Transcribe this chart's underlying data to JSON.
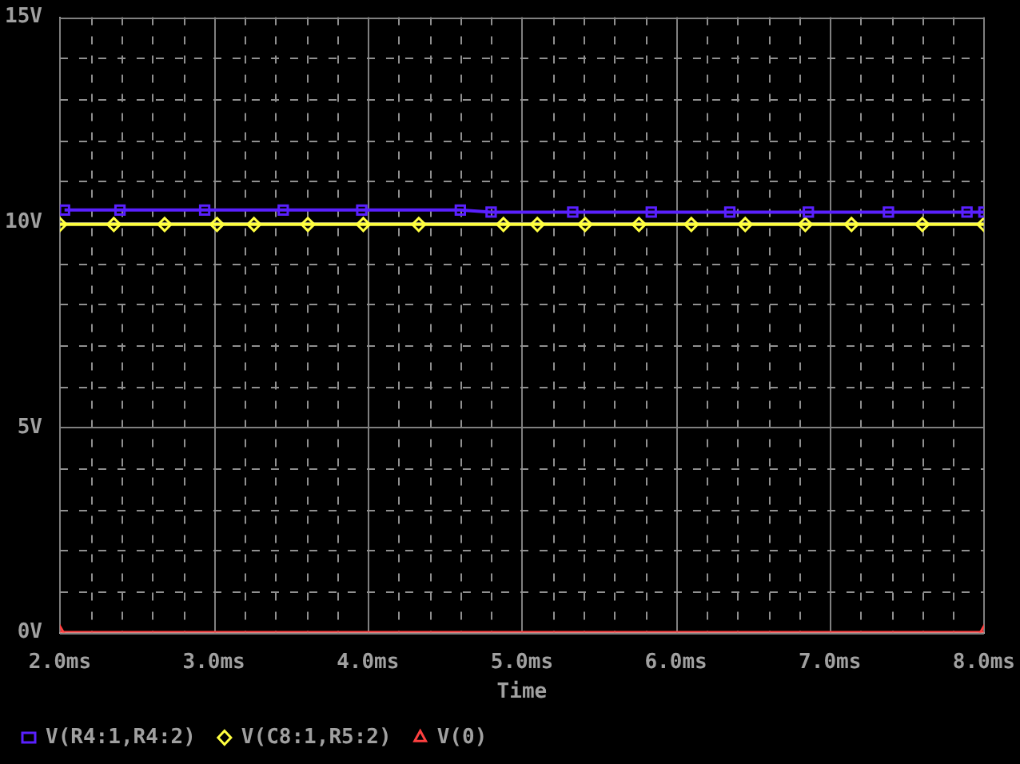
{
  "chart_data": {
    "type": "line",
    "xlabel": "Time",
    "x": [
      2.03,
      2.39,
      2.94,
      3.45,
      3.96,
      4.6,
      4.8,
      5.33,
      5.84,
      6.35,
      6.86,
      7.38,
      7.89,
      8.0
    ],
    "series": [
      {
        "name": "V(R4:1,R4:2)",
        "color": "#5a20ff",
        "marker": "square",
        "values": [
          10.3,
          10.3,
          10.3,
          10.3,
          10.3,
          10.3,
          10.25,
          10.25,
          10.25,
          10.25,
          10.25,
          10.25,
          10.25,
          10.25
        ]
      },
      {
        "name": "V(C8:1,R5:2)",
        "color": "#ffff40",
        "marker": "diamond",
        "x": [
          2.0,
          2.35,
          2.68,
          3.02,
          3.26,
          3.61,
          3.97,
          4.33,
          4.88,
          5.1,
          5.41,
          5.76,
          6.1,
          6.45,
          6.84,
          7.14,
          7.6,
          8.0
        ],
        "values": [
          9.95,
          9.95,
          9.95,
          9.95,
          9.95,
          9.95,
          9.95,
          9.95,
          9.95,
          9.95,
          9.95,
          9.95,
          9.95,
          9.95,
          9.95,
          9.95,
          9.95,
          9.95
        ]
      },
      {
        "name": "V(0)",
        "color": "#ff4040",
        "marker": "triangle",
        "x": [
          2.0,
          8.0
        ],
        "values": [
          0,
          0
        ]
      }
    ],
    "xlim": [
      2.0,
      8.0
    ],
    "xticks": [
      {
        "value": 2.0,
        "label": "2.0ms"
      },
      {
        "value": 2.2,
        "label": null
      },
      {
        "value": 2.4,
        "label": null
      },
      {
        "value": 2.6,
        "label": null
      },
      {
        "value": 2.8,
        "label": null
      },
      {
        "value": 3.0,
        "label": "3.0ms"
      },
      {
        "value": 3.2,
        "label": null
      },
      {
        "value": 3.4,
        "label": null
      },
      {
        "value": 3.6,
        "label": null
      },
      {
        "value": 3.8,
        "label": null
      },
      {
        "value": 4.0,
        "label": "4.0ms"
      },
      {
        "value": 4.2,
        "label": null
      },
      {
        "value": 4.4,
        "label": null
      },
      {
        "value": 4.6,
        "label": null
      },
      {
        "value": 4.8,
        "label": null
      },
      {
        "value": 5.0,
        "label": "5.0ms"
      },
      {
        "value": 5.2,
        "label": null
      },
      {
        "value": 5.4,
        "label": null
      },
      {
        "value": 5.6,
        "label": null
      },
      {
        "value": 5.8,
        "label": null
      },
      {
        "value": 6.0,
        "label": "6.0ms"
      },
      {
        "value": 6.2,
        "label": null
      },
      {
        "value": 6.4,
        "label": null
      },
      {
        "value": 6.6,
        "label": null
      },
      {
        "value": 6.8,
        "label": null
      },
      {
        "value": 7.0,
        "label": "7.0ms"
      },
      {
        "value": 7.2,
        "label": null
      },
      {
        "value": 7.4,
        "label": null
      },
      {
        "value": 7.6,
        "label": null
      },
      {
        "value": 7.8,
        "label": null
      },
      {
        "value": 8.0,
        "label": "8.0ms"
      }
    ],
    "ylim": [
      0,
      15
    ],
    "yticks": [
      {
        "value": 0,
        "label": "0V"
      },
      {
        "value": 1,
        "label": null
      },
      {
        "value": 2,
        "label": null
      },
      {
        "value": 3,
        "label": null
      },
      {
        "value": 4,
        "label": null
      },
      {
        "value": 5,
        "label": "5V"
      },
      {
        "value": 6,
        "label": null
      },
      {
        "value": 7,
        "label": null
      },
      {
        "value": 8,
        "label": null
      },
      {
        "value": 9,
        "label": null
      },
      {
        "value": 10,
        "label": "10V"
      },
      {
        "value": 11,
        "label": null
      },
      {
        "value": 12,
        "label": null
      },
      {
        "value": 13,
        "label": null
      },
      {
        "value": 14,
        "label": null
      },
      {
        "value": 15,
        "label": "15V"
      }
    ],
    "grid": true,
    "legend": "bottom"
  }
}
